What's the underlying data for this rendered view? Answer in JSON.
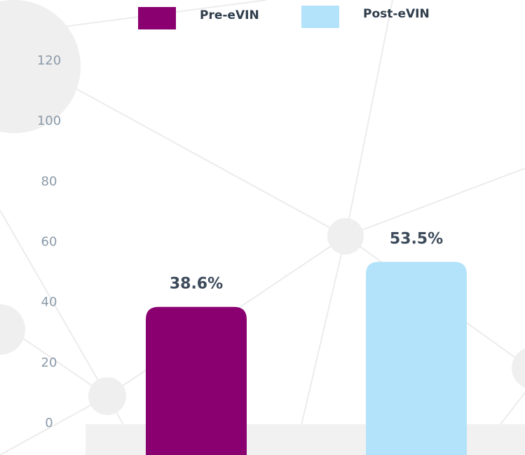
{
  "chart_data": {
    "type": "bar",
    "categories": [
      null
    ],
    "series": [
      {
        "name": "Pre-eVIN",
        "color": "#8b0070",
        "values": [
          38.6
        ],
        "value_labels": [
          "38.6%"
        ]
      },
      {
        "name": "Post-eVIN",
        "color": "#b3e3fb",
        "values": [
          53.5
        ],
        "value_labels": [
          "53.5%"
        ]
      }
    ],
    "ylim": [
      0,
      120
    ],
    "yticks": [
      0,
      20,
      40,
      60,
      80,
      100,
      120
    ],
    "grid": false,
    "legend": "top"
  }
}
